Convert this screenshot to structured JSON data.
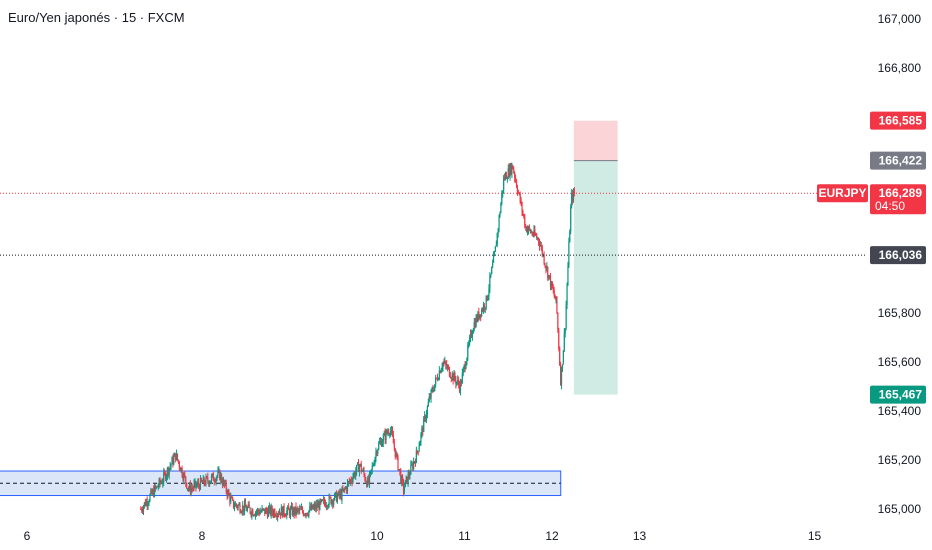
{
  "header": {
    "title": "Euro/Yen japonés · 15 · FXCM"
  },
  "colors": {
    "up": "#089981",
    "down": "#f23645",
    "box_stroke": "#2962ff",
    "box_fill": "#dbe6f8",
    "stop_zone": "#fbd4d7",
    "target_zone": "#cfebe3",
    "price_line": "#f23645"
  },
  "chart_data": {
    "type": "candlestick",
    "symbol": "EURJPY",
    "y_ticks": [
      "167,000",
      "166,800",
      "165,800",
      "165,600",
      "165,400",
      "165,200",
      "165,000"
    ],
    "x_ticks": [
      {
        "label": "6",
        "day": 6
      },
      {
        "label": "8",
        "day": 8
      },
      {
        "label": "10",
        "day": 10
      },
      {
        "label": "11",
        "day": 11
      },
      {
        "label": "12",
        "day": 12
      },
      {
        "label": "13",
        "day": 13
      },
      {
        "label": "15",
        "day": 15
      }
    ],
    "ylim": [
      164.96,
      167.02
    ],
    "current_price": {
      "symbol": "EURJPY",
      "value": "166,289",
      "countdown": "04:50",
      "num": 166.289
    },
    "horizontal_line": {
      "value": "166,036",
      "num": 166.036
    },
    "position": {
      "stop": {
        "value": "166,585",
        "num": 166.585
      },
      "entry": {
        "value": "166,422",
        "num": 166.422
      },
      "target": {
        "value": "165,467",
        "num": 165.467
      },
      "start_day": 12.25,
      "end_day": 12.75
    },
    "demand_zone": {
      "top": 165.155,
      "bottom": 165.055,
      "mid": 165.105,
      "start_day": 4.72,
      "end_day": 12.1
    },
    "series_anchors": [
      {
        "day": 7.3,
        "price": 165.0
      },
      {
        "day": 7.55,
        "price": 165.12
      },
      {
        "day": 7.7,
        "price": 165.22
      },
      {
        "day": 7.85,
        "price": 165.08
      },
      {
        "day": 8.2,
        "price": 165.14
      },
      {
        "day": 8.35,
        "price": 165.02
      },
      {
        "day": 8.6,
        "price": 164.99
      },
      {
        "day": 9.2,
        "price": 164.99
      },
      {
        "day": 9.6,
        "price": 165.06
      },
      {
        "day": 9.8,
        "price": 165.18
      },
      {
        "day": 9.9,
        "price": 165.1
      },
      {
        "day": 10.0,
        "price": 165.25
      },
      {
        "day": 10.15,
        "price": 165.33
      },
      {
        "day": 10.3,
        "price": 165.08
      },
      {
        "day": 10.45,
        "price": 165.22
      },
      {
        "day": 10.6,
        "price": 165.45
      },
      {
        "day": 10.75,
        "price": 165.6
      },
      {
        "day": 10.95,
        "price": 165.5
      },
      {
        "day": 11.1,
        "price": 165.75
      },
      {
        "day": 11.25,
        "price": 165.85
      },
      {
        "day": 11.35,
        "price": 166.05
      },
      {
        "day": 11.45,
        "price": 166.35
      },
      {
        "day": 11.55,
        "price": 166.4
      },
      {
        "day": 11.7,
        "price": 166.15
      },
      {
        "day": 11.85,
        "price": 166.1
      },
      {
        "day": 12.0,
        "price": 165.9
      },
      {
        "day": 12.05,
        "price": 165.84
      },
      {
        "day": 12.1,
        "price": 165.52
      },
      {
        "day": 12.15,
        "price": 165.75
      },
      {
        "day": 12.22,
        "price": 166.27
      },
      {
        "day": 12.26,
        "price": 166.289
      }
    ]
  }
}
